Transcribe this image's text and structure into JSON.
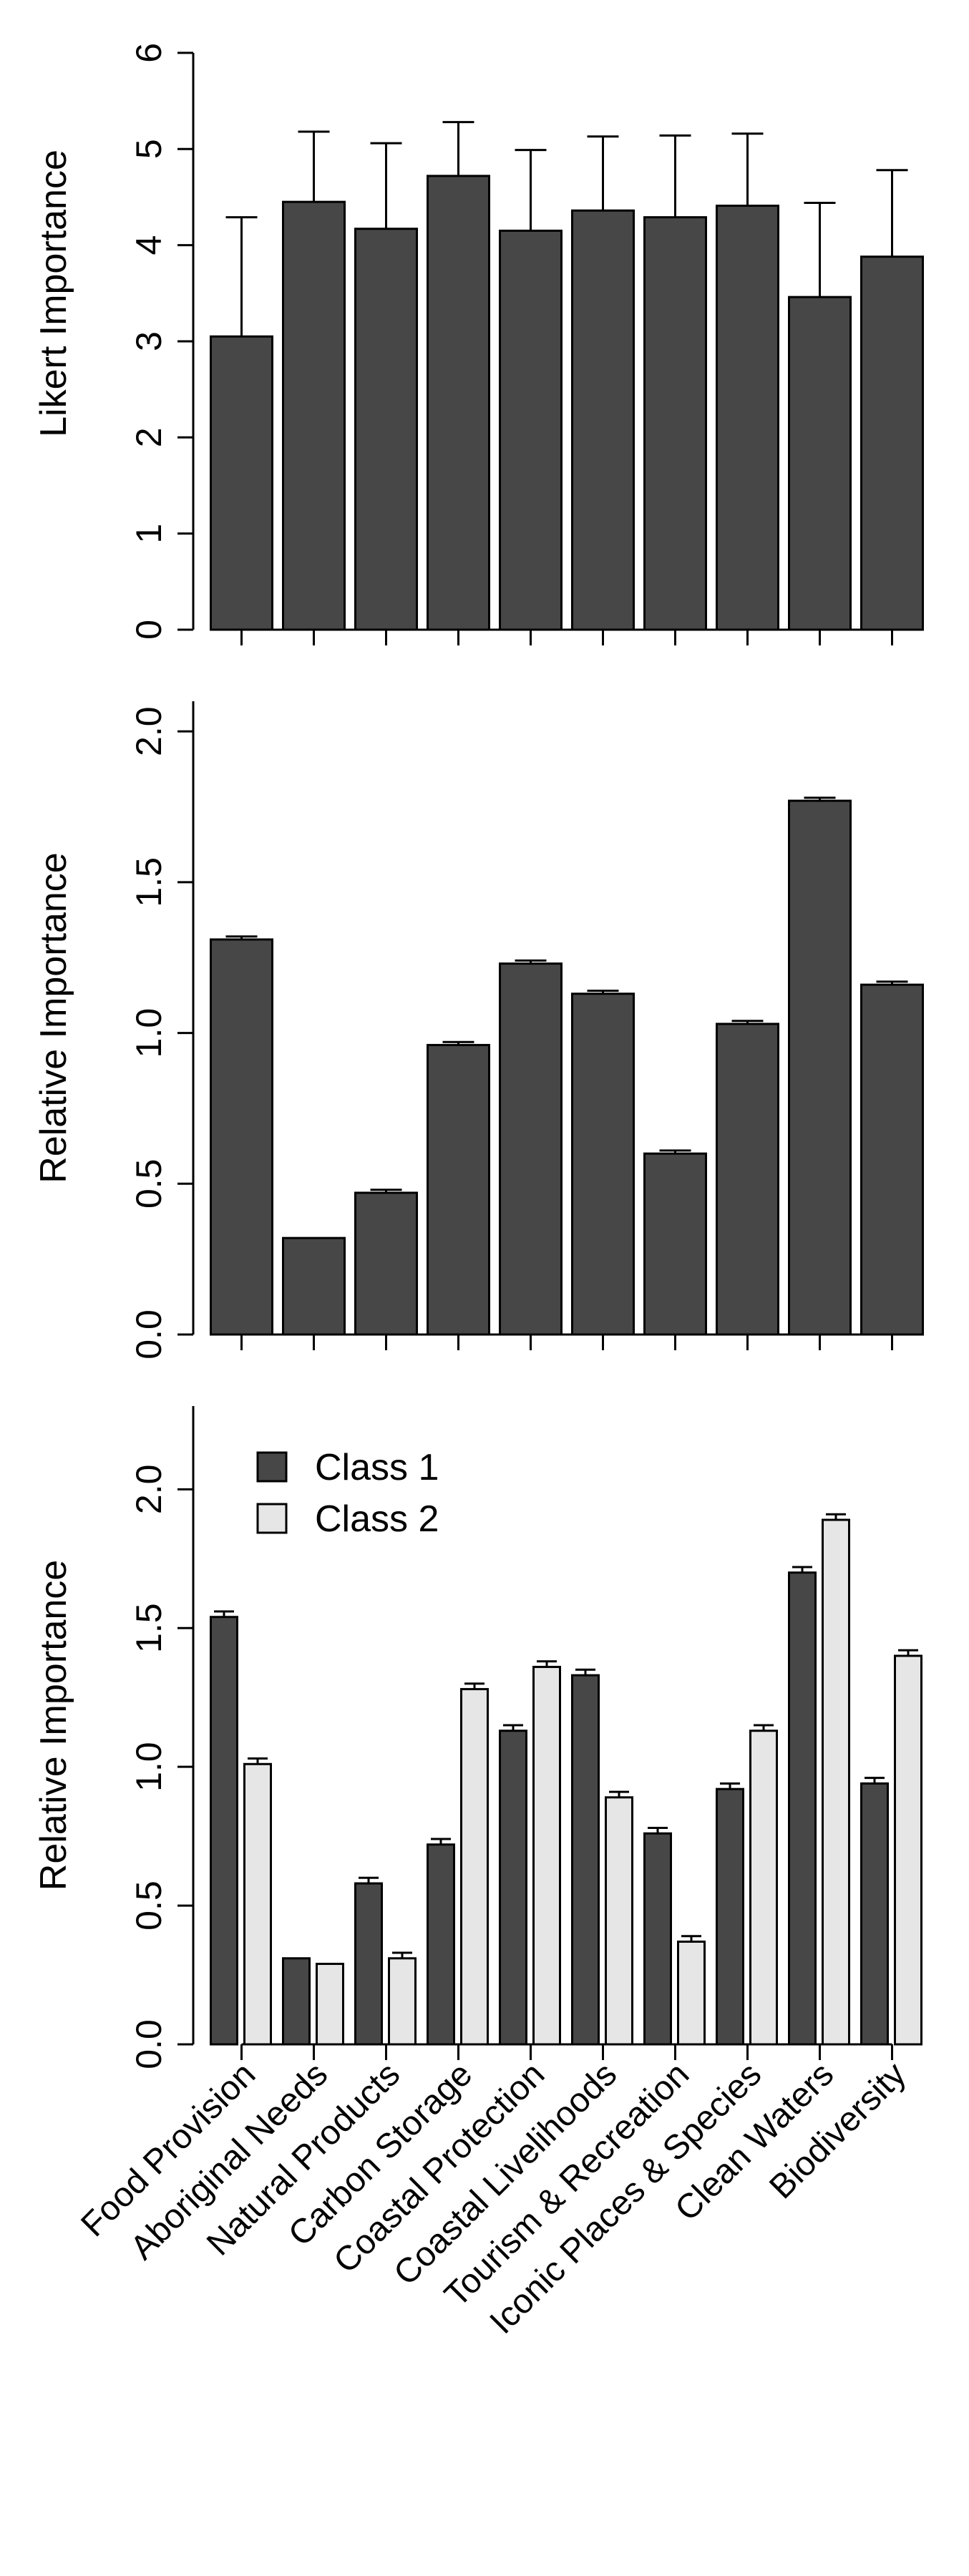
{
  "colors": {
    "class1": "#474747",
    "class2": "#e6e6e6",
    "axis": "#000000"
  },
  "categories": [
    "Food Provision",
    "Aboriginal Needs",
    "Natural Products",
    "Carbon Storage",
    "Coastal Protection",
    "Coastal Livelihoods",
    "Tourism & Recreation",
    "Iconic Places & Species",
    "Clean Waters",
    "Biodiversity"
  ],
  "chart_data": [
    {
      "type": "bar",
      "ylabel": "Likert Importance",
      "ylim": [
        0,
        6
      ],
      "yticks": [
        "0",
        "1",
        "2",
        "3",
        "4",
        "5",
        "6"
      ],
      "yticks_values": [
        0,
        1,
        2,
        3,
        4,
        5,
        6
      ],
      "series": [
        {
          "values": [
            3.05,
            4.45,
            4.17,
            4.72,
            4.15,
            4.36,
            4.29,
            4.41,
            3.46,
            3.88
          ],
          "error": [
            1.24,
            0.73,
            0.89,
            0.56,
            0.84,
            0.77,
            0.85,
            0.75,
            0.98,
            0.9
          ]
        }
      ],
      "legend": null
    },
    {
      "type": "bar",
      "ylabel": "Relative Importance",
      "ylim": [
        0,
        2.1
      ],
      "yticks": [
        "0.0",
        "0.5",
        "1.0",
        "1.5",
        "2.0"
      ],
      "yticks_values": [
        0,
        0.5,
        1.0,
        1.5,
        2.0
      ],
      "series": [
        {
          "values": [
            1.31,
            0.32,
            0.47,
            0.96,
            1.23,
            1.13,
            0.6,
            1.03,
            1.77,
            1.16
          ],
          "error": [
            0.01,
            0.0,
            0.01,
            0.01,
            0.01,
            0.01,
            0.01,
            0.01,
            0.01,
            0.01
          ]
        }
      ],
      "legend": null
    },
    {
      "type": "bar",
      "ylabel": "Relative Importance",
      "ylim": [
        0,
        2.3
      ],
      "yticks": [
        "0.0",
        "0.5",
        "1.0",
        "1.5",
        "2.0"
      ],
      "yticks_values": [
        0,
        0.5,
        1.0,
        1.5,
        2.0
      ],
      "series": [
        {
          "name": "Class 1",
          "values": [
            1.54,
            0.31,
            0.58,
            0.72,
            1.13,
            1.33,
            0.76,
            0.92,
            1.7,
            0.94
          ],
          "error": [
            0.02,
            0.0,
            0.02,
            0.02,
            0.02,
            0.02,
            0.02,
            0.02,
            0.02,
            0.02
          ]
        },
        {
          "name": "Class 2",
          "values": [
            1.01,
            0.29,
            0.31,
            1.28,
            1.36,
            0.89,
            0.37,
            1.13,
            1.89,
            1.4
          ],
          "error": [
            0.02,
            0.0,
            0.02,
            0.02,
            0.02,
            0.02,
            0.02,
            0.02,
            0.02,
            0.02
          ]
        }
      ],
      "legend": "top-left"
    }
  ]
}
